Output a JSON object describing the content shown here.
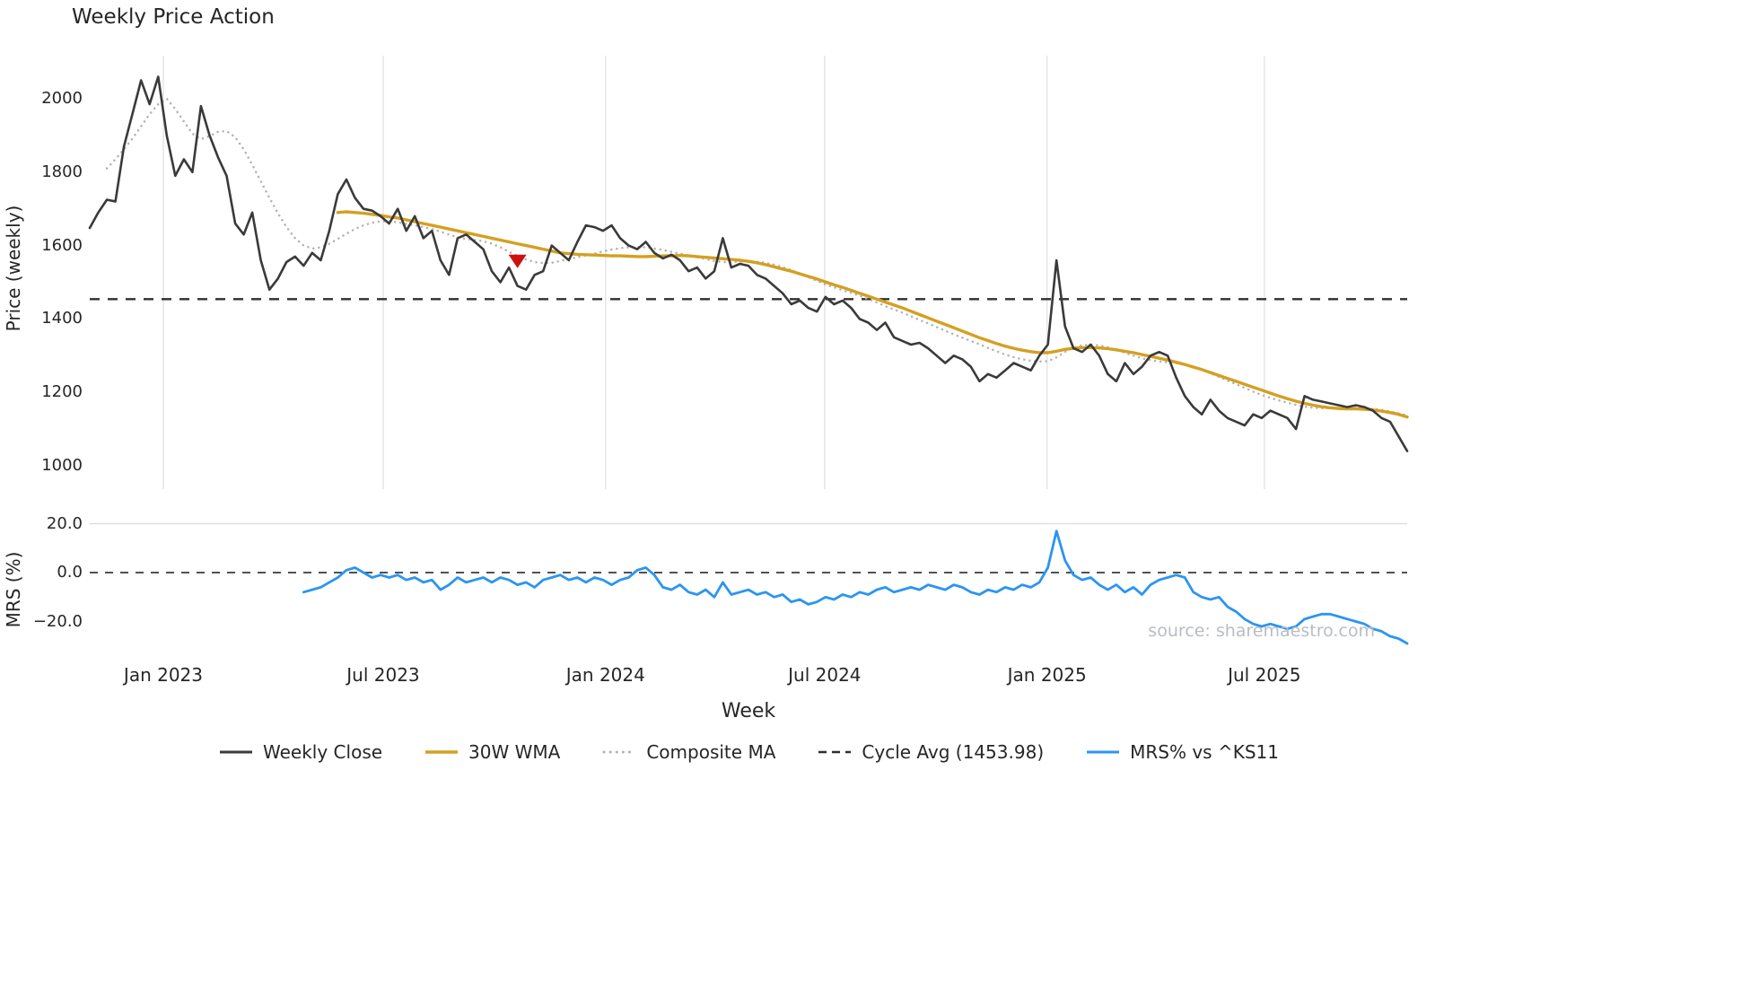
{
  "title": "Weekly Price Action",
  "xlabel": "Week",
  "source": "source: sharemaestro.com",
  "legend": {
    "items": [
      {
        "label": "Weekly Close"
      },
      {
        "label": "30W WMA"
      },
      {
        "label": "Composite MA"
      },
      {
        "label": "Cycle Avg (1453.98)"
      },
      {
        "label": "MRS% vs ^KS11"
      }
    ]
  },
  "chart_data": [
    {
      "type": "line",
      "panel": "price",
      "title": "Weekly Price Action",
      "ylabel": "Price (weekly)",
      "ylim": [
        950,
        2100
      ],
      "yticks": [
        1000,
        1200,
        1400,
        1600,
        1800,
        2000
      ],
      "xticklabels": [
        "Jan 2023",
        "Jul 2023",
        "Jan 2024",
        "Jul 2024",
        "Jan 2025",
        "Jul 2025"
      ],
      "xtick_week_indices": [
        8.6,
        34.3,
        60.3,
        85.9,
        111.9,
        137.3
      ],
      "x_unit": "week_index",
      "grid": "vertical",
      "cycle_avg": 1453.98,
      "signal_marker": {
        "shape": "triangle-down",
        "color": "#cc1111",
        "week_index": 50,
        "value": 1558
      },
      "series": [
        {
          "name": "Weekly Close",
          "color": "#3a3a3a",
          "style": "solid",
          "start_index": 0,
          "values": [
            1648,
            1690,
            1725,
            1720,
            1870,
            1960,
            2050,
            1985,
            2060,
            1900,
            1790,
            1835,
            1800,
            1980,
            1900,
            1840,
            1790,
            1660,
            1630,
            1690,
            1560,
            1480,
            1510,
            1555,
            1570,
            1545,
            1580,
            1560,
            1640,
            1740,
            1780,
            1730,
            1700,
            1695,
            1680,
            1660,
            1700,
            1640,
            1680,
            1620,
            1640,
            1560,
            1520,
            1620,
            1630,
            1610,
            1590,
            1530,
            1500,
            1540,
            1490,
            1480,
            1520,
            1530,
            1600,
            1580,
            1560,
            1610,
            1655,
            1650,
            1640,
            1655,
            1620,
            1600,
            1590,
            1610,
            1580,
            1565,
            1575,
            1560,
            1530,
            1540,
            1510,
            1530,
            1620,
            1540,
            1550,
            1545,
            1520,
            1510,
            1490,
            1470,
            1440,
            1450,
            1430,
            1420,
            1460,
            1440,
            1450,
            1430,
            1400,
            1390,
            1370,
            1390,
            1350,
            1340,
            1330,
            1335,
            1320,
            1300,
            1280,
            1300,
            1290,
            1270,
            1230,
            1250,
            1240,
            1260,
            1280,
            1270,
            1260,
            1300,
            1330,
            1560,
            1380,
            1320,
            1310,
            1330,
            1300,
            1250,
            1230,
            1280,
            1250,
            1270,
            1300,
            1310,
            1300,
            1240,
            1190,
            1160,
            1140,
            1180,
            1150,
            1130,
            1120,
            1110,
            1140,
            1130,
            1150,
            1140,
            1130,
            1100,
            1190,
            1180,
            1175,
            1170,
            1165,
            1160,
            1165,
            1160,
            1150,
            1130,
            1120,
            1080,
            1040
          ]
        },
        {
          "name": "30W WMA",
          "color": "#d4a021",
          "style": "solid",
          "start_index": 29,
          "values": [
            1690,
            1692,
            1690,
            1688,
            1685,
            1682,
            1678,
            1675,
            1670,
            1665,
            1660,
            1655,
            1650,
            1645,
            1640,
            1635,
            1630,
            1625,
            1620,
            1615,
            1610,
            1605,
            1600,
            1595,
            1590,
            1585,
            1580,
            1578,
            1576,
            1575,
            1574,
            1573,
            1572,
            1572,
            1571,
            1570,
            1570,
            1571,
            1572,
            1572,
            1573,
            1572,
            1570,
            1568,
            1566,
            1564,
            1562,
            1560,
            1557,
            1553,
            1548,
            1542,
            1536,
            1530,
            1523,
            1516,
            1509,
            1501,
            1493,
            1486,
            1478,
            1470,
            1462,
            1454,
            1446,
            1438,
            1430,
            1421,
            1412,
            1403,
            1394,
            1385,
            1376,
            1367,
            1358,
            1349,
            1341,
            1333,
            1326,
            1320,
            1315,
            1311,
            1308,
            1308,
            1312,
            1317,
            1320,
            1322,
            1322,
            1321,
            1319,
            1316,
            1312,
            1308,
            1303,
            1298,
            1293,
            1288,
            1282,
            1276,
            1269,
            1262,
            1254,
            1246,
            1238,
            1230,
            1222,
            1214,
            1206,
            1198,
            1190,
            1183,
            1176,
            1170,
            1165,
            1161,
            1158,
            1156,
            1155,
            1155,
            1154,
            1152,
            1149,
            1145,
            1140,
            1133
          ]
        },
        {
          "name": "Composite MA",
          "color": "#b3b3b3",
          "style": "dotted",
          "start_index": 2,
          "values": [
            1810,
            1835,
            1862,
            1892,
            1925,
            1958,
            1985,
            2000,
            1972,
            1938,
            1905,
            1890,
            1898,
            1910,
            1912,
            1895,
            1862,
            1820,
            1775,
            1730,
            1688,
            1650,
            1620,
            1600,
            1592,
            1595,
            1605,
            1618,
            1632,
            1645,
            1655,
            1662,
            1666,
            1666,
            1663,
            1659,
            1655,
            1650,
            1645,
            1638,
            1630,
            1622,
            1618,
            1615,
            1612,
            1605,
            1595,
            1583,
            1572,
            1562,
            1555,
            1552,
            1553,
            1558,
            1563,
            1568,
            1573,
            1578,
            1584,
            1589,
            1593,
            1595,
            1596,
            1595,
            1592,
            1588,
            1583,
            1578,
            1573,
            1568,
            1563,
            1558,
            1555,
            1555,
            1556,
            1557,
            1556,
            1553,
            1548,
            1541,
            1533,
            1524,
            1514,
            1504,
            1494,
            1486,
            1478,
            1471,
            1463,
            1454,
            1445,
            1435,
            1426,
            1417,
            1407,
            1397,
            1388,
            1378,
            1368,
            1358,
            1349,
            1340,
            1331,
            1321,
            1312,
            1303,
            1296,
            1290,
            1286,
            1284,
            1285,
            1295,
            1310,
            1322,
            1328,
            1330,
            1328,
            1323,
            1316,
            1308,
            1300,
            1293,
            1288,
            1284,
            1282,
            1280,
            1276,
            1270,
            1262,
            1252,
            1242,
            1232,
            1222,
            1212,
            1202,
            1193,
            1185,
            1178,
            1172,
            1166,
            1161,
            1158,
            1157,
            1157,
            1158,
            1158,
            1158,
            1157,
            1155,
            1152,
            1148,
            1143,
            1137
          ]
        },
        {
          "name": "Cycle Avg",
          "color": "#2f2f2f",
          "style": "dashed",
          "constant_value": 1453.98
        }
      ]
    },
    {
      "type": "line",
      "panel": "mrs",
      "ylabel": "MRS (%)",
      "yticks": [
        20.0,
        0.0,
        -20.0
      ],
      "ytick_labels": [
        "20.0",
        "0.0",
        "−20.0"
      ],
      "zero_line": 0,
      "series": [
        {
          "name": "MRS% vs ^KS11",
          "color": "#2b95f0",
          "style": "solid",
          "start_index": 25,
          "values": [
            -8,
            -7,
            -6,
            -4,
            -2,
            1,
            2,
            0,
            -2,
            -1,
            -2,
            -1,
            -3,
            -2,
            -4,
            -3,
            -7,
            -5,
            -2,
            -4,
            -3,
            -2,
            -4,
            -2,
            -3,
            -5,
            -4,
            -6,
            -3,
            -2,
            -1,
            -3,
            -2,
            -4,
            -2,
            -3,
            -5,
            -3,
            -2,
            1,
            2,
            -1,
            -6,
            -7,
            -5,
            -8,
            -9,
            -7,
            -10,
            -4,
            -9,
            -8,
            -7,
            -9,
            -8,
            -10,
            -9,
            -12,
            -11,
            -13,
            -12,
            -10,
            -11,
            -9,
            -10,
            -8,
            -9,
            -7,
            -6,
            -8,
            -7,
            -6,
            -7,
            -5,
            -6,
            -7,
            -5,
            -6,
            -8,
            -9,
            -7,
            -8,
            -6,
            -7,
            -5,
            -6,
            -4,
            2,
            17,
            5,
            -1,
            -3,
            -2,
            -5,
            -7,
            -5,
            -8,
            -6,
            -9,
            -5,
            -3,
            -2,
            -1,
            -2,
            -8,
            -10,
            -11,
            -10,
            -14,
            -16,
            -19,
            -21,
            -22,
            -21,
            -22,
            -23,
            -22,
            -19,
            -18,
            -17,
            -17,
            -18,
            -19,
            -20,
            -21,
            -23,
            -24,
            -26,
            -27,
            -29
          ]
        }
      ]
    }
  ]
}
